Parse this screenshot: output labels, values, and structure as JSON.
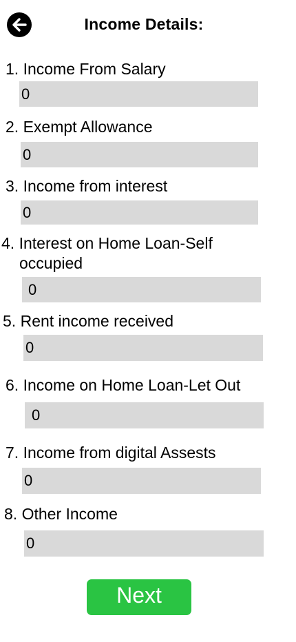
{
  "header": {
    "back_icon": "arrow-left-icon",
    "title": "Income Details:"
  },
  "fields": [
    {
      "number": "1.",
      "label": "Income From Salary",
      "value": "0"
    },
    {
      "number": "2.",
      "label": "Exempt Allowance",
      "value": "0"
    },
    {
      "number": "3.",
      "label": "Income from interest",
      "value": "0"
    },
    {
      "number": "4.",
      "label": "Interest on Home Loan-Self",
      "label_cont": "occupied",
      "value": "0"
    },
    {
      "number": "5.",
      "label": "Rent income received",
      "value": "0"
    },
    {
      "number": "6.",
      "label": "Income on Home Loan-Let Out",
      "value": "0"
    },
    {
      "number": "7.",
      "label": "Income from digital Assests",
      "value": "0"
    },
    {
      "number": "8.",
      "label": "Other Income",
      "value": "0"
    }
  ],
  "footer": {
    "next_label": "Next"
  },
  "colors": {
    "input_background": "#d9d9d9",
    "next_button": "#2ac443",
    "back_button": "#000000"
  }
}
